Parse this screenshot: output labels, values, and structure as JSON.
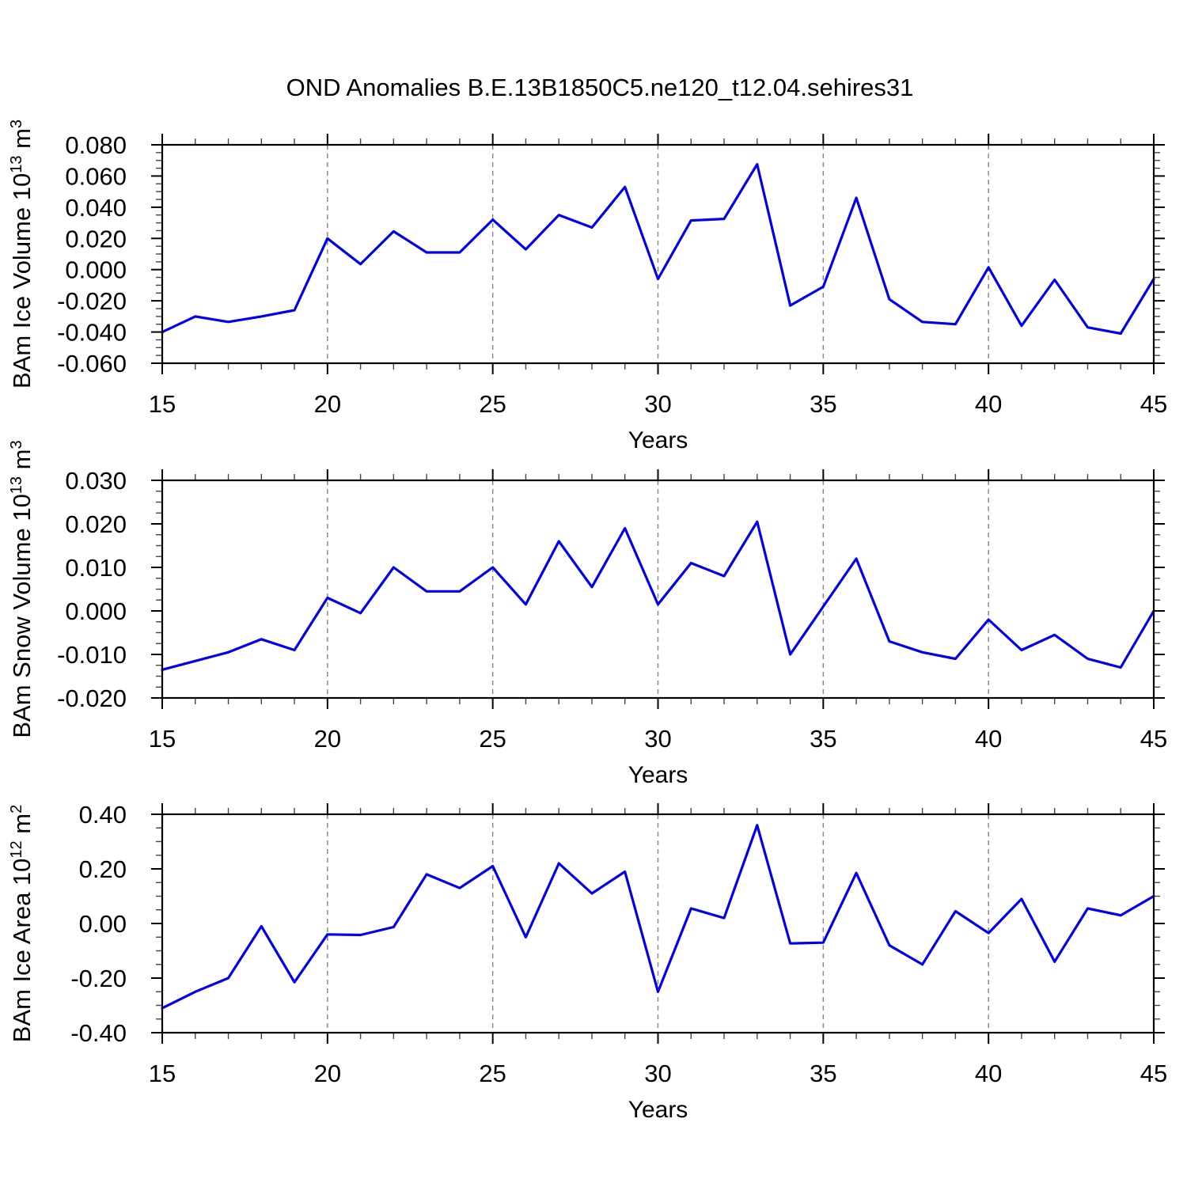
{
  "title": "OND Anomalies B.E.13B1850C5.ne120_t12.04.sehires31",
  "colors": {
    "line": "#0000ee",
    "axis": "#000000",
    "grid": "#8a8a8a",
    "background": "#ffffff",
    "text": "#000000"
  },
  "chart_data": [
    {
      "type": "line",
      "xlabel": "Years",
      "ylabel_segments": [
        {
          "text": "BAm Ice Volume 10"
        },
        {
          "text": "13",
          "sup": true
        },
        {
          "text": " m"
        },
        {
          "text": "3",
          "sup": true
        }
      ],
      "xlim": [
        15,
        45
      ],
      "ylim": [
        -0.06,
        0.08
      ],
      "xticks": {
        "values": [
          15,
          20,
          25,
          30,
          35,
          40,
          45
        ],
        "labels": [
          "15",
          "20",
          "25",
          "30",
          "35",
          "40",
          "45"
        ],
        "minor_step": 1
      },
      "yticks": {
        "values": [
          0.08,
          0.06,
          0.04,
          0.02,
          0.0,
          -0.02,
          -0.04,
          -0.06
        ],
        "labels": [
          "0.080",
          "0.060",
          "0.040",
          "0.020",
          "0.000",
          "-0.020",
          "-0.040",
          "-0.060"
        ],
        "minor_step": 0.005
      },
      "grid_lines": [
        20,
        25,
        30,
        35,
        40
      ],
      "grid_on": true,
      "legend": "none",
      "x": [
        15,
        16,
        17,
        18,
        19,
        20,
        21,
        22,
        23,
        24,
        25,
        26,
        27,
        28,
        29,
        30,
        31,
        32,
        33,
        34,
        35,
        36,
        37,
        38,
        39,
        40,
        41,
        42,
        43,
        44,
        45
      ],
      "values": [
        -0.04,
        -0.03,
        -0.0335,
        -0.03,
        -0.026,
        0.02,
        0.0035,
        0.0245,
        0.011,
        0.011,
        0.032,
        0.013,
        0.035,
        0.027,
        0.053,
        -0.006,
        0.0315,
        0.0325,
        0.0675,
        -0.023,
        -0.011,
        0.046,
        -0.019,
        -0.0335,
        -0.035,
        0.0015,
        -0.036,
        -0.0065,
        -0.037,
        -0.041,
        -0.006
      ]
    },
    {
      "type": "line",
      "xlabel": "Years",
      "ylabel_segments": [
        {
          "text": "BAm Snow Volume 10"
        },
        {
          "text": "13",
          "sup": true
        },
        {
          "text": " m"
        },
        {
          "text": "3",
          "sup": true
        }
      ],
      "xlim": [
        15,
        45
      ],
      "ylim": [
        -0.02,
        0.03
      ],
      "xticks": {
        "values": [
          15,
          20,
          25,
          30,
          35,
          40,
          45
        ],
        "labels": [
          "15",
          "20",
          "25",
          "30",
          "35",
          "40",
          "45"
        ],
        "minor_step": 1
      },
      "yticks": {
        "values": [
          0.03,
          0.02,
          0.01,
          0.0,
          -0.01,
          -0.02
        ],
        "labels": [
          "0.030",
          "0.020",
          "0.010",
          "0.000",
          "-0.010",
          "-0.020"
        ],
        "minor_step": 0.0025
      },
      "grid_lines": [
        20,
        25,
        30,
        35,
        40
      ],
      "grid_on": true,
      "legend": "none",
      "x": [
        15,
        16,
        17,
        18,
        19,
        20,
        21,
        22,
        23,
        24,
        25,
        26,
        27,
        28,
        29,
        30,
        31,
        32,
        33,
        34,
        35,
        36,
        37,
        38,
        39,
        40,
        41,
        42,
        43,
        44,
        45
      ],
      "values": [
        -0.0135,
        -0.0115,
        -0.0095,
        -0.0065,
        -0.009,
        0.003,
        -0.0005,
        0.01,
        0.0045,
        0.0045,
        0.01,
        0.0015,
        0.016,
        0.0055,
        0.019,
        0.0015,
        0.011,
        0.008,
        0.0205,
        -0.01,
        0.001,
        0.012,
        -0.007,
        -0.0095,
        -0.011,
        -0.002,
        -0.009,
        -0.0055,
        -0.011,
        -0.013,
        0.0
      ]
    },
    {
      "type": "line",
      "xlabel": "Years",
      "ylabel_segments": [
        {
          "text": "BAm Ice Area 10"
        },
        {
          "text": "12",
          "sup": true
        },
        {
          "text": " m"
        },
        {
          "text": "2",
          "sup": true
        }
      ],
      "xlim": [
        15,
        45
      ],
      "ylim": [
        -0.4,
        0.4
      ],
      "xticks": {
        "values": [
          15,
          20,
          25,
          30,
          35,
          40,
          45
        ],
        "labels": [
          "15",
          "20",
          "25",
          "30",
          "35",
          "40",
          "45"
        ],
        "minor_step": 1
      },
      "yticks": {
        "values": [
          0.4,
          0.2,
          0.0,
          -0.2,
          -0.4
        ],
        "labels": [
          "0.40",
          "0.20",
          "0.00",
          "-0.20",
          "-0.40"
        ],
        "minor_step": 0.05
      },
      "grid_lines": [
        20,
        25,
        30,
        35,
        40
      ],
      "grid_on": true,
      "legend": "none",
      "x": [
        15,
        16,
        17,
        18,
        19,
        20,
        21,
        22,
        23,
        24,
        25,
        26,
        27,
        28,
        29,
        30,
        31,
        32,
        33,
        34,
        35,
        36,
        37,
        38,
        39,
        40,
        41,
        42,
        43,
        44,
        45
      ],
      "values": [
        -0.31,
        -0.25,
        -0.2,
        -0.01,
        -0.215,
        -0.04,
        -0.042,
        -0.013,
        0.18,
        0.13,
        0.21,
        -0.05,
        0.22,
        0.11,
        0.19,
        -0.25,
        0.055,
        0.02,
        0.36,
        -0.073,
        -0.07,
        0.185,
        -0.08,
        -0.15,
        0.045,
        -0.035,
        0.09,
        -0.14,
        0.055,
        0.03,
        0.1
      ]
    }
  ]
}
